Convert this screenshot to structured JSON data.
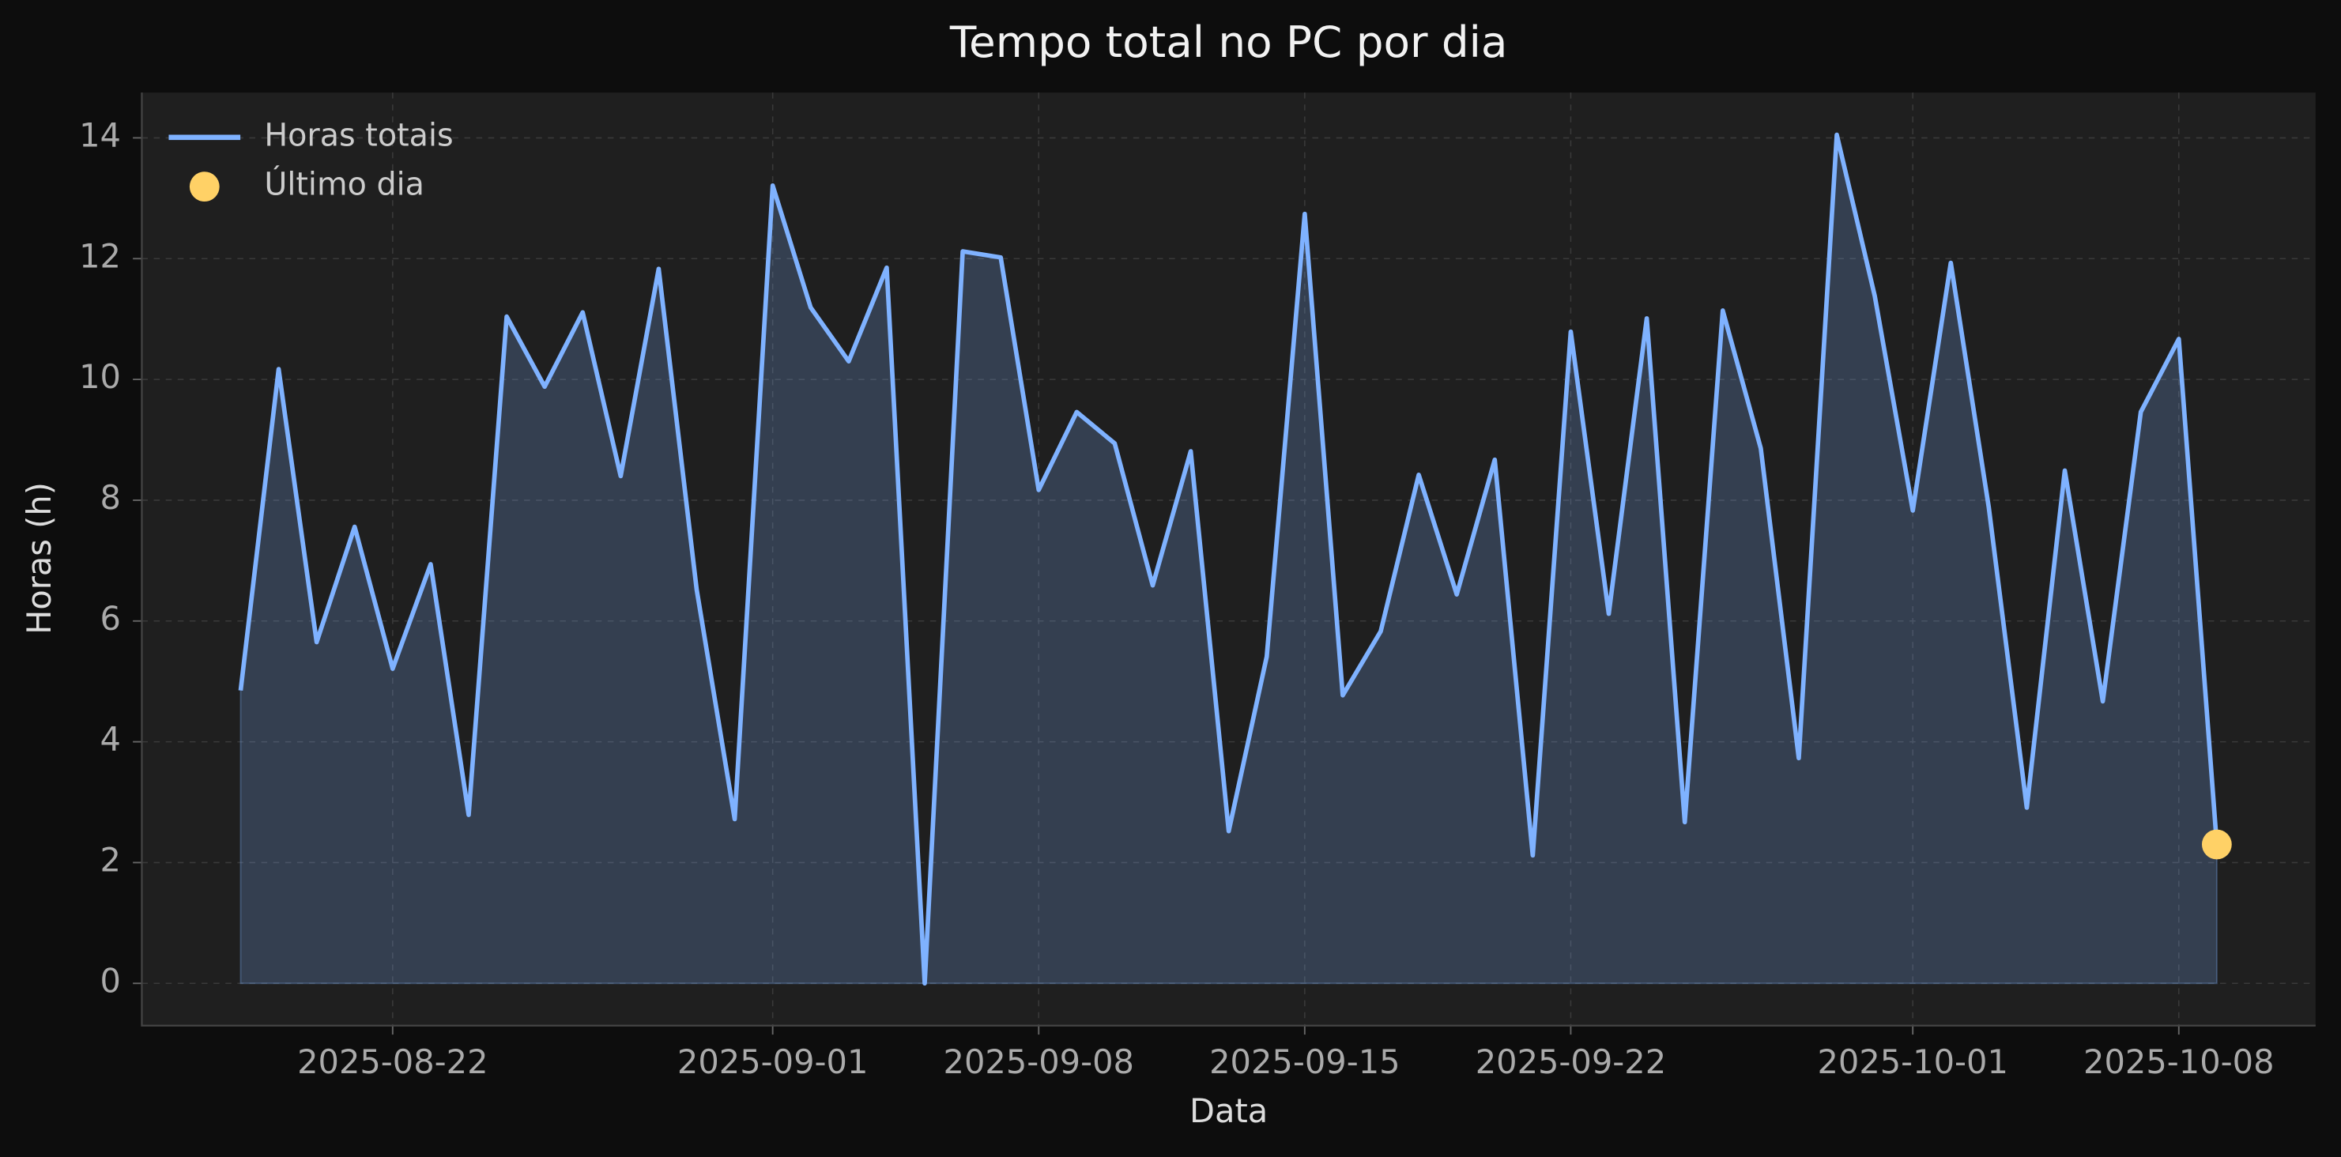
{
  "chart_data": {
    "type": "line",
    "title": "Tempo total no PC por dia",
    "xlabel": "Data",
    "ylabel": "Horas (h)",
    "x": [
      "2025-08-18",
      "2025-08-19",
      "2025-08-20",
      "2025-08-21",
      "2025-08-22",
      "2025-08-23",
      "2025-08-24",
      "2025-08-25",
      "2025-08-26",
      "2025-08-27",
      "2025-08-28",
      "2025-08-29",
      "2025-08-30",
      "2025-08-31",
      "2025-09-01",
      "2025-09-02",
      "2025-09-03",
      "2025-09-04",
      "2025-09-05",
      "2025-09-06",
      "2025-09-07",
      "2025-09-08",
      "2025-09-09",
      "2025-09-10",
      "2025-09-11",
      "2025-09-12",
      "2025-09-13",
      "2025-09-14",
      "2025-09-15",
      "2025-09-16",
      "2025-09-17",
      "2025-09-18",
      "2025-09-19",
      "2025-09-20",
      "2025-09-21",
      "2025-09-22",
      "2025-09-23",
      "2025-09-24",
      "2025-09-25",
      "2025-09-26",
      "2025-09-27",
      "2025-09-28",
      "2025-09-29",
      "2025-09-30",
      "2025-10-01",
      "2025-10-02",
      "2025-10-03",
      "2025-10-04",
      "2025-10-05",
      "2025-10-06",
      "2025-10-07",
      "2025-10-08",
      "2025-10-09"
    ],
    "series": [
      {
        "name": "Horas totais",
        "color": "#7fb2ff",
        "fill": true,
        "values": [
          4.85,
          10.17,
          5.65,
          7.56,
          5.21,
          6.94,
          2.79,
          11.04,
          9.88,
          11.11,
          8.4,
          11.83,
          6.52,
          2.72,
          13.21,
          11.19,
          10.3,
          11.85,
          0,
          12.12,
          12.02,
          8.17,
          9.46,
          8.94,
          6.59,
          8.81,
          2.52,
          5.41,
          12.74,
          4.77,
          5.83,
          8.42,
          6.44,
          8.67,
          2.12,
          10.79,
          6.12,
          11.01,
          2.67,
          11.14,
          8.86,
          3.73,
          14.05,
          11.38,
          7.83,
          11.93,
          7.88,
          2.91,
          8.49,
          4.67,
          9.46,
          10.67,
          2.3
        ]
      },
      {
        "name": "Último dia",
        "color": "#ffd166",
        "type": "scatter",
        "x": [
          "2025-10-09"
        ],
        "values": [
          2.3
        ]
      }
    ],
    "xlim": [
      "2025-08-15T09:36",
      "2025-10-11T14:24"
    ],
    "ylim": [
      -0.7,
      14.75
    ],
    "xticks": [
      "2025-08-22",
      "2025-09-01",
      "2025-09-08",
      "2025-09-15",
      "2025-09-22",
      "2025-10-01",
      "2025-10-08"
    ],
    "yticks": [
      0,
      2,
      4,
      6,
      8,
      10,
      12,
      14
    ],
    "grid": true,
    "legend": "upper left"
  }
}
